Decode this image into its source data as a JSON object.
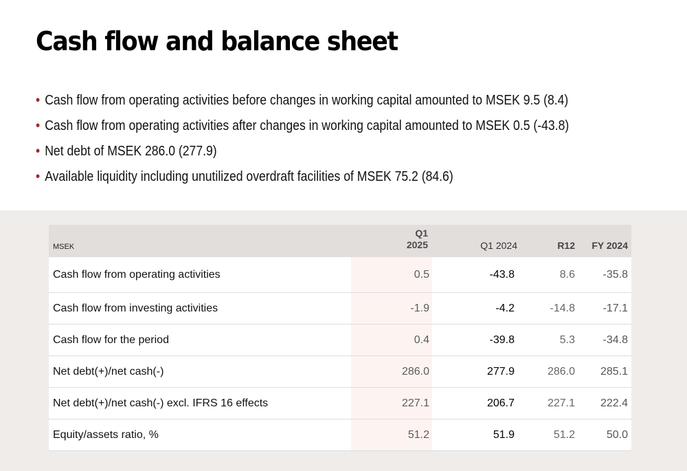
{
  "title": "Cash flow and balance sheet",
  "bullets": [
    "Cash flow from operating activities before changes in working capital amounted to MSEK 9.5 (8.4)",
    "Cash flow from operating activities after changes in working capital amounted to MSEK 0.5 (-43.8)",
    "Net debt of MSEK 286.0 (277.9)",
    "Available liquidity including unutilized overdraft facilities of MSEK 75.2 (84.6)"
  ],
  "table": {
    "unit_label": "MSEK",
    "headers": {
      "q1_2025_line1": "Q1",
      "q1_2025_line2": "2025",
      "q1_2024": "Q1 2024",
      "r12": "R12",
      "fy2024": "FY 2024"
    },
    "rows": [
      {
        "label": "Cash flow from operating activities",
        "q1_2025": "0.5",
        "q1_2024": "-43.8",
        "r12": "8.6",
        "fy2024": "-35.8"
      },
      {
        "label": "Cash flow from investing activities",
        "q1_2025": "-1.9",
        "q1_2024": "-4.2",
        "r12": "-14.8",
        "fy2024": "-17.1"
      },
      {
        "label": "Cash flow for the period",
        "q1_2025": "0.4",
        "q1_2024": "-39.8",
        "r12": "5.3",
        "fy2024": "-34.8"
      },
      {
        "label": "Net debt(+)/net cash(-)",
        "q1_2025": "286.0",
        "q1_2024": "277.9",
        "r12": "286.0",
        "fy2024": "285.1"
      },
      {
        "label": "Net debt(+)/net cash(-) excl. IFRS 16 effects",
        "q1_2025": "227.1",
        "q1_2024": "206.7",
        "r12": "227.1",
        "fy2024": "222.4"
      },
      {
        "label": "Equity/assets ratio, %",
        "q1_2025": "51.2",
        "q1_2024": "51.9",
        "r12": "51.2",
        "fy2024": "50.0"
      }
    ]
  }
}
